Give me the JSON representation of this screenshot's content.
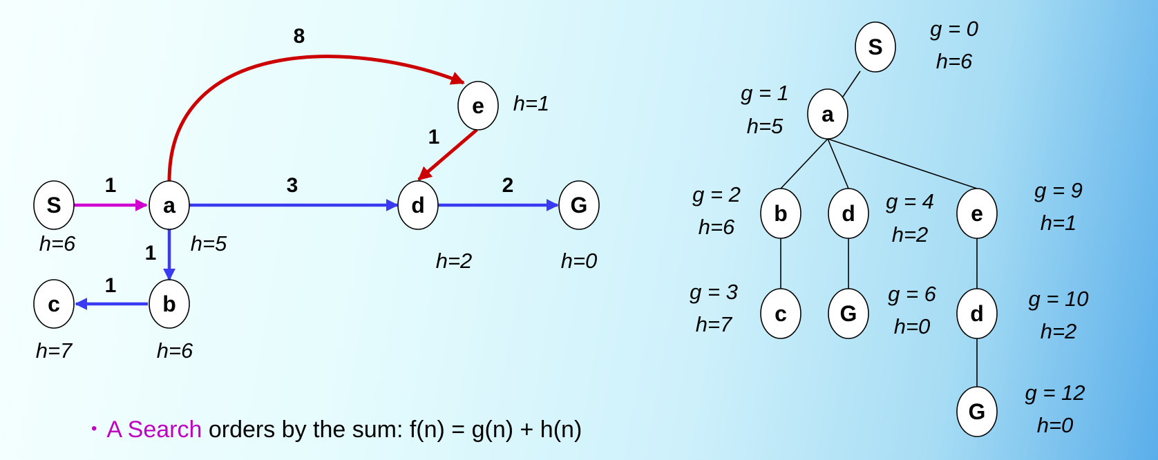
{
  "colors": {
    "magenta": "#d000d0",
    "blue": "#3a3af2",
    "red": "#cc0000",
    "node_fill": "#ffffff"
  },
  "graph": {
    "nodes": {
      "S": {
        "label": "S",
        "h": "h=6"
      },
      "a": {
        "label": "a",
        "h": "h=5"
      },
      "b": {
        "label": "b",
        "h": "h=6"
      },
      "c": {
        "label": "c",
        "h": "h=7"
      },
      "d": {
        "label": "d",
        "h": "h=2"
      },
      "e": {
        "label": "e",
        "h": "h=1"
      },
      "G": {
        "label": "G",
        "h": "h=0"
      }
    },
    "edges": [
      {
        "from": "S",
        "to": "a",
        "weight": "1",
        "color": "magenta"
      },
      {
        "from": "a",
        "to": "d",
        "weight": "3",
        "color": "blue"
      },
      {
        "from": "d",
        "to": "G",
        "weight": "2",
        "color": "blue"
      },
      {
        "from": "a",
        "to": "b",
        "weight": "1",
        "color": "blue"
      },
      {
        "from": "b",
        "to": "c",
        "weight": "1",
        "color": "blue"
      },
      {
        "from": "a",
        "to": "e",
        "weight": "8",
        "color": "red"
      },
      {
        "from": "e",
        "to": "d",
        "weight": "1",
        "color": "red"
      }
    ]
  },
  "tree": {
    "nodes": [
      {
        "id": "S",
        "label": "S",
        "g": "g = 0",
        "h": "h=6"
      },
      {
        "id": "a",
        "label": "a",
        "g": "g = 1",
        "h": "h=5"
      },
      {
        "id": "b",
        "label": "b",
        "g": "g = 2",
        "h": "h=6"
      },
      {
        "id": "d1",
        "label": "d",
        "g": "g = 4",
        "h": "h=2"
      },
      {
        "id": "e",
        "label": "e",
        "g": "g = 9",
        "h": "h=1"
      },
      {
        "id": "c",
        "label": "c",
        "g": "g = 3",
        "h": "h=7"
      },
      {
        "id": "G1",
        "label": "G",
        "g": "g = 6",
        "h": "h=0"
      },
      {
        "id": "d2",
        "label": "d",
        "g": "g = 10",
        "h": "h=2"
      },
      {
        "id": "G2",
        "label": "G",
        "g": "g = 12",
        "h": "h=0"
      }
    ],
    "edges": [
      [
        "S",
        "a"
      ],
      [
        "a",
        "b"
      ],
      [
        "a",
        "d1"
      ],
      [
        "a",
        "e"
      ],
      [
        "b",
        "c"
      ],
      [
        "d1",
        "G1"
      ],
      [
        "e",
        "d2"
      ],
      [
        "d2",
        "G2"
      ]
    ]
  },
  "caption": {
    "bullet": "•",
    "highlight": "A Search",
    "rest": " orders by the sum: f(n) = g(n) + h(n)"
  }
}
